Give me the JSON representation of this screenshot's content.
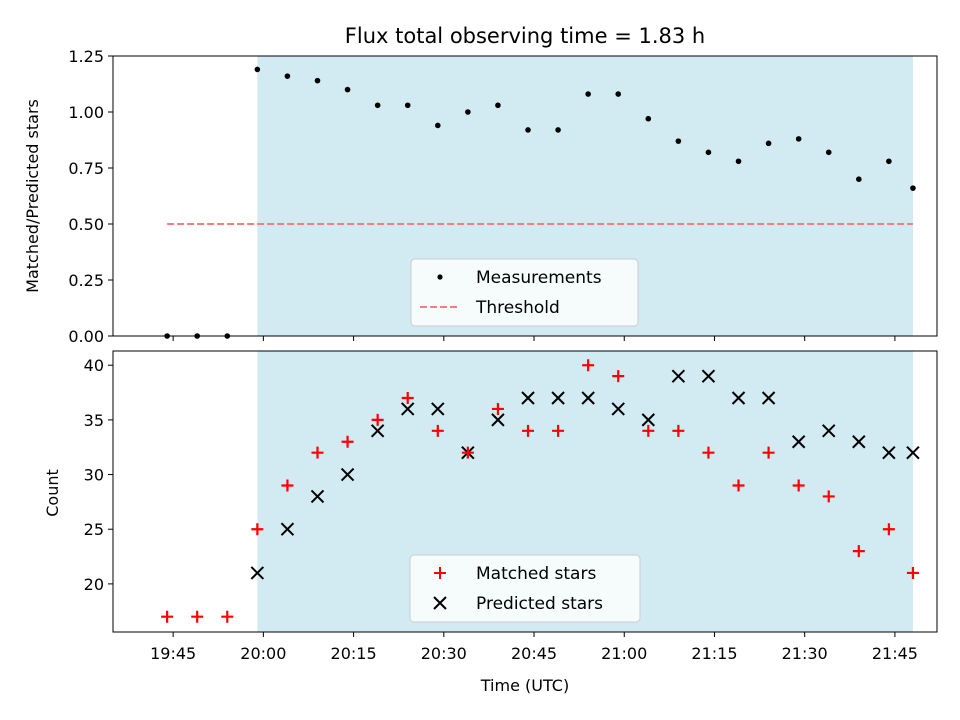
{
  "chart_data": [
    {
      "type": "scatter",
      "title": "Flux total observing time = 1.83 h",
      "ylabel": "Matched/Predicted stars",
      "xlabel": "",
      "ylim": [
        0,
        1.25
      ],
      "y_ticks": [
        "0.00",
        "0.25",
        "0.50",
        "0.75",
        "1.00",
        "1.25"
      ],
      "x_range": [
        "19:35",
        "21:52"
      ],
      "observing_window": [
        "19:59",
        "21:48"
      ],
      "observing_window_color": "#add8e6",
      "legend_position": "bottom-center",
      "threshold": {
        "name": "Threshold",
        "value": 0.5,
        "x": [
          "19:44",
          "21:48"
        ],
        "color": "#f08080"
      },
      "series": [
        {
          "name": "Measurements",
          "color": "#000000",
          "marker": "dot",
          "x": [
            "19:44",
            "19:49",
            "19:54",
            "19:59",
            "20:04",
            "20:09",
            "20:14",
            "20:19",
            "20:24",
            "20:29",
            "20:34",
            "20:39",
            "20:44",
            "20:49",
            "20:54",
            "20:59",
            "21:04",
            "21:09",
            "21:14",
            "21:19",
            "21:24",
            "21:29",
            "21:34",
            "21:39",
            "21:44",
            "21:48"
          ],
          "y": [
            0.0,
            0.0,
            0.0,
            1.19,
            1.16,
            1.14,
            1.1,
            1.03,
            1.03,
            0.94,
            1.0,
            1.03,
            0.92,
            0.92,
            1.08,
            1.08,
            0.97,
            0.87,
            0.82,
            0.78,
            0.86,
            0.88,
            0.82,
            0.7,
            0.78,
            0.66
          ]
        }
      ]
    },
    {
      "type": "scatter",
      "title": "",
      "ylabel": "Count",
      "xlabel": "Time (UTC)",
      "ylim": [
        15.6,
        41.3
      ],
      "y_ticks": [
        "20",
        "25",
        "30",
        "35",
        "40"
      ],
      "x_range": [
        "19:35",
        "21:52"
      ],
      "x_ticks": [
        "19:45",
        "20:00",
        "20:15",
        "20:30",
        "20:45",
        "21:00",
        "21:15",
        "21:30",
        "21:45"
      ],
      "observing_window": [
        "19:59",
        "21:48"
      ],
      "observing_window_color": "#add8e6",
      "legend_position": "bottom-center",
      "series": [
        {
          "name": "Matched stars",
          "color": "#ff0000",
          "marker": "plus",
          "x": [
            "19:44",
            "19:49",
            "19:54",
            "19:59",
            "20:04",
            "20:09",
            "20:14",
            "20:19",
            "20:24",
            "20:29",
            "20:34",
            "20:39",
            "20:44",
            "20:49",
            "20:54",
            "20:59",
            "21:04",
            "21:09",
            "21:14",
            "21:19",
            "21:24",
            "21:29",
            "21:34",
            "21:39",
            "21:44",
            "21:48"
          ],
          "y": [
            17,
            17,
            17,
            25,
            29,
            32,
            33,
            35,
            37,
            34,
            32,
            36,
            34,
            34,
            40,
            39,
            34,
            34,
            32,
            29,
            32,
            29,
            28,
            23,
            25,
            21
          ]
        },
        {
          "name": "Predicted stars",
          "color": "#000000",
          "marker": "x",
          "x": [
            "19:59",
            "20:04",
            "20:09",
            "20:14",
            "20:19",
            "20:24",
            "20:29",
            "20:34",
            "20:39",
            "20:44",
            "20:49",
            "20:54",
            "20:59",
            "21:04",
            "21:09",
            "21:14",
            "21:19",
            "21:24",
            "21:29",
            "21:34",
            "21:39",
            "21:44",
            "21:48"
          ],
          "y": [
            21,
            25,
            28,
            30,
            34,
            36,
            36,
            32,
            35,
            37,
            37,
            37,
            36,
            35,
            39,
            39,
            37,
            37,
            33,
            34,
            33,
            32,
            32
          ]
        }
      ]
    }
  ]
}
